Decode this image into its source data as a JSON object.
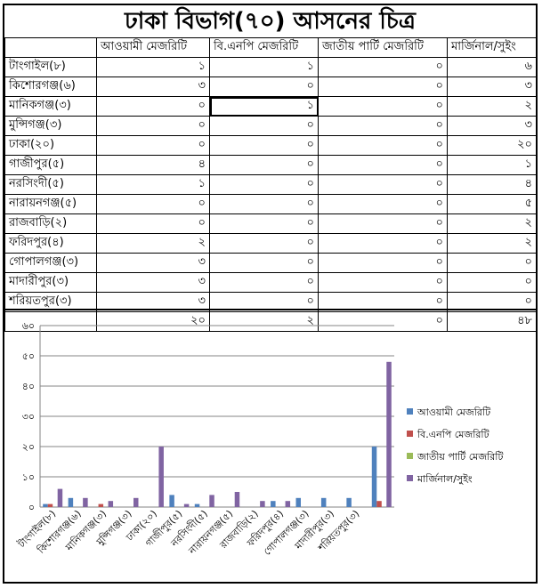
{
  "title": "ঢাকা বিভাগ(৭০) আসনের চিত্র",
  "table": {
    "headers": [
      "",
      "আওয়ামী মেজরিটি",
      "বি.এনপি মেজরিটি",
      "জাতীয় পার্টি মেজরিটি",
      "মার্জিনাল/সুইং"
    ],
    "rows": [
      {
        "name": "টাংগাইল(৮)",
        "cells": [
          "১",
          "১",
          "০",
          "৬"
        ]
      },
      {
        "name": "কিশোরগঞ্জ(৬)",
        "cells": [
          "৩",
          "০",
          "০",
          "৩"
        ]
      },
      {
        "name": "মানিকগঞ্জ(৩)",
        "cells": [
          "০",
          "১",
          "০",
          "২"
        ]
      },
      {
        "name": "মুন্সিগঞ্জ(৩)",
        "cells": [
          "০",
          "০",
          "০",
          "৩"
        ]
      },
      {
        "name": "ঢাকা(২০)",
        "cells": [
          "০",
          "০",
          "০",
          "২০"
        ]
      },
      {
        "name": "গাজীপুর(৫)",
        "cells": [
          "৪",
          "০",
          "০",
          "১"
        ]
      },
      {
        "name": "নরসিংদী(৫)",
        "cells": [
          "১",
          "০",
          "০",
          "৪"
        ]
      },
      {
        "name": "নারায়নগঞ্জ(৫)",
        "cells": [
          "০",
          "০",
          "০",
          "৫"
        ]
      },
      {
        "name": "রাজবাড়ি(২)",
        "cells": [
          "০",
          "০",
          "০",
          "২"
        ]
      },
      {
        "name": "ফরিদপুর(৪)",
        "cells": [
          "২",
          "০",
          "০",
          "২"
        ]
      },
      {
        "name": "গোপালগঞ্জ(৩)",
        "cells": [
          "৩",
          "০",
          "০",
          "০"
        ]
      },
      {
        "name": "মাদারীপুর(৩)",
        "cells": [
          "৩",
          "০",
          "০",
          "০"
        ]
      },
      {
        "name": "শরিয়তপুর(৩)",
        "cells": [
          "৩",
          "০",
          "০",
          "০"
        ]
      },
      {
        "name": "",
        "cells": [
          "২০",
          "২",
          "০",
          "৪৮"
        ]
      }
    ]
  },
  "chart_data": {
    "type": "bar",
    "categories": [
      "টাংগাইল(৮)",
      "কিশোরগঞ্জ(৬)",
      "মানিকগঞ্জ(৩)",
      "মুন্সিগঞ্জ(৩)",
      "ঢাকা(২০)",
      "গাজীপুর(৫)",
      "নরসিংদী(৫)",
      "নারায়নগঞ্জ(৫)",
      "রাজবাড়ি(২)",
      "ফরিদপুর(৪)",
      "গোপালগঞ্জ(৩)",
      "মাদারীপুর(৩)",
      "শরিয়তপুর(৩)",
      ""
    ],
    "series": [
      {
        "name": "আওয়ামী মেজরিটি",
        "color": "#4f81bd",
        "values": [
          1,
          3,
          0,
          0,
          0,
          4,
          1,
          0,
          0,
          2,
          3,
          3,
          3,
          20
        ]
      },
      {
        "name": "বি.এনপি মেজরিটি",
        "color": "#c0504d",
        "values": [
          1,
          0,
          1,
          0,
          0,
          0,
          0,
          0,
          0,
          0,
          0,
          0,
          0,
          2
        ]
      },
      {
        "name": "জাতীয় পার্টি মেজরিটি",
        "color": "#9bbb59",
        "values": [
          0,
          0,
          0,
          0,
          0,
          0,
          0,
          0,
          0,
          0,
          0,
          0,
          0,
          0
        ]
      },
      {
        "name": "মার্জিনাল/সুইং",
        "color": "#8064a2",
        "values": [
          6,
          3,
          2,
          3,
          20,
          1,
          4,
          5,
          2,
          2,
          0,
          0,
          0,
          48
        ]
      }
    ],
    "ylim": [
      0,
      60
    ],
    "yticks": [
      "০",
      "১০",
      "২০",
      "৩০",
      "৪০",
      "৫০",
      "৬০"
    ],
    "grid": true,
    "legend": "right"
  }
}
